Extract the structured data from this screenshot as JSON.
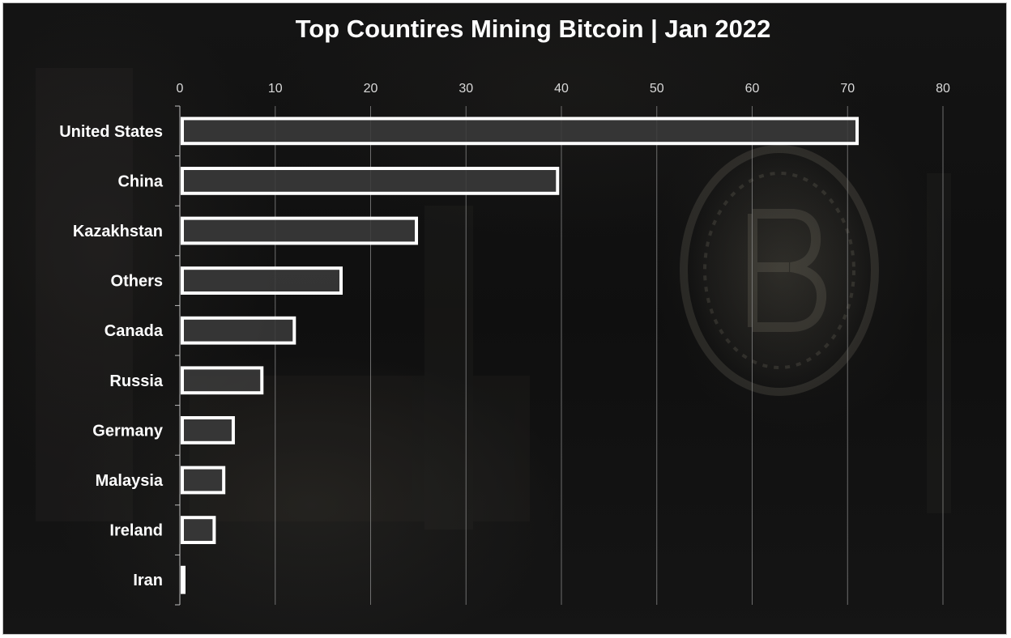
{
  "chart_data": {
    "type": "bar",
    "orientation": "horizontal",
    "title": "Top Countires Mining Bitcoin | Jan 2022",
    "categories": [
      "United States",
      "China",
      "Kazakhstan",
      "Others",
      "Canada",
      "Russia",
      "Germany",
      "Malaysia",
      "Ireland",
      "Iran"
    ],
    "values": [
      71,
      39.6,
      24.8,
      16.9,
      12,
      8.6,
      5.6,
      4.6,
      3.6,
      0.2
    ],
    "xlim": [
      0,
      80
    ],
    "x_ticks": [
      0,
      10,
      20,
      30,
      40,
      50,
      60,
      70,
      80
    ],
    "x_axis_position": "top",
    "grid": true,
    "legend": "none",
    "bar_fill": "#3a3a3a",
    "bar_outline": "#ffffff",
    "background": "#121212"
  }
}
